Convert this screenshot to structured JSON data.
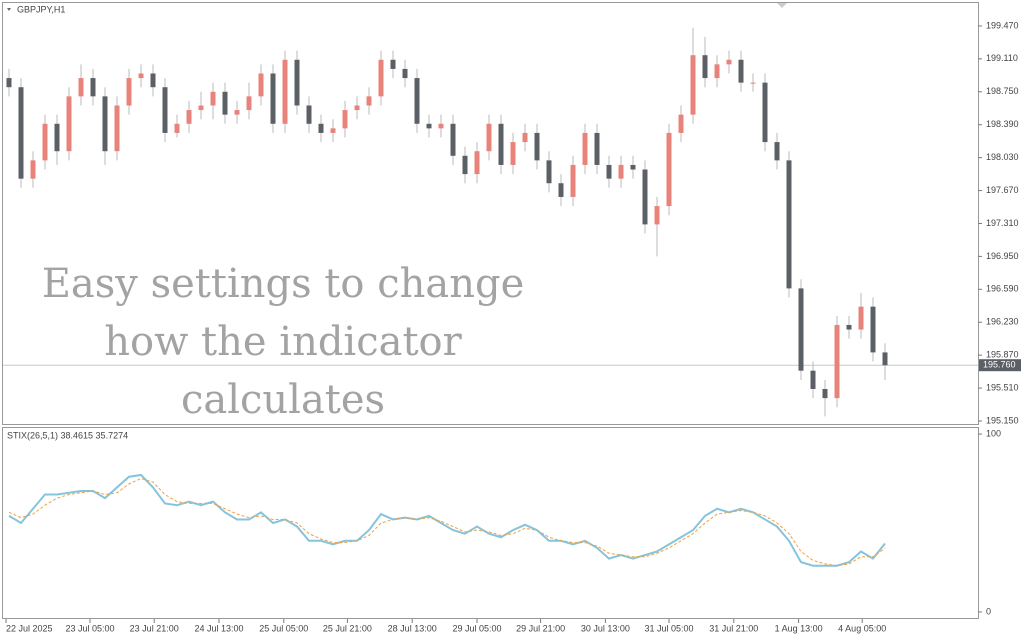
{
  "chart_data": [
    {
      "type": "candlestick",
      "title": "GBPJPY,H1",
      "annotations": [
        "Easy settings to change",
        "how the indicator",
        "calculates"
      ],
      "up_color": "#e8837b",
      "down_color": "#5b5f66",
      "ylim": [
        195.117,
        199.71
      ],
      "xlim": [
        -0.5,
        80.75
      ],
      "yticks": [
        {
          "value": 199.47,
          "label": "199.470"
        },
        {
          "value": 199.11,
          "label": "199.110"
        },
        {
          "value": 198.75,
          "label": "198.750"
        },
        {
          "value": 198.39,
          "label": "198.390"
        },
        {
          "value": 198.03,
          "label": "198.030"
        },
        {
          "value": 197.67,
          "label": "197.670"
        },
        {
          "value": 197.31,
          "label": "197.310"
        },
        {
          "value": 196.95,
          "label": "196.950"
        },
        {
          "value": 196.59,
          "label": "196.590"
        },
        {
          "value": 196.23,
          "label": "196.230"
        },
        {
          "value": 195.87,
          "label": "195.870"
        },
        {
          "value": 195.51,
          "label": "195.510"
        },
        {
          "value": 195.15,
          "label": "195.150"
        }
      ],
      "current_price": {
        "value": 195.76,
        "label": "195.760"
      },
      "open": [
        198.9,
        198.8,
        197.8,
        198.0,
        198.4,
        198.1,
        198.7,
        198.9,
        198.7,
        198.1,
        198.6,
        198.9,
        198.95,
        198.8,
        198.3,
        198.4,
        198.55,
        198.6,
        198.75,
        198.5,
        198.55,
        198.7,
        198.95,
        198.4,
        199.1,
        198.6,
        198.4,
        198.3,
        198.35,
        198.55,
        198.6,
        198.7,
        199.1,
        199.0,
        198.9,
        198.4,
        198.35,
        198.4,
        198.05,
        197.85,
        198.1,
        198.4,
        197.95,
        198.2,
        198.3,
        198.0,
        197.75,
        197.6,
        197.95,
        198.3,
        197.95,
        197.8,
        197.95,
        197.9,
        197.3,
        197.5,
        198.3,
        198.5,
        199.15,
        198.9,
        199.05,
        199.1,
        198.85,
        198.85,
        198.2,
        198.0,
        196.6,
        195.7,
        195.5,
        195.4,
        196.2,
        196.15,
        196.4,
        195.9
      ],
      "high": [
        199.0,
        198.9,
        198.1,
        198.5,
        198.5,
        198.8,
        199.05,
        199.0,
        198.8,
        198.7,
        199.0,
        199.05,
        199.05,
        198.9,
        198.5,
        198.65,
        198.75,
        198.85,
        198.85,
        198.65,
        198.85,
        199.05,
        199.05,
        199.2,
        199.2,
        198.7,
        198.5,
        198.45,
        198.65,
        198.7,
        198.8,
        199.2,
        199.2,
        199.1,
        199.0,
        198.5,
        198.5,
        198.5,
        198.15,
        198.2,
        198.5,
        198.5,
        198.3,
        198.4,
        198.4,
        198.1,
        197.85,
        198.05,
        198.4,
        198.4,
        198.05,
        198.05,
        198.05,
        198.0,
        197.6,
        198.4,
        198.6,
        199.45,
        199.35,
        199.15,
        199.2,
        199.2,
        198.95,
        198.95,
        198.3,
        198.1,
        196.7,
        195.8,
        195.6,
        196.3,
        196.3,
        196.55,
        196.5,
        196.0
      ],
      "low": [
        198.7,
        197.7,
        197.7,
        197.9,
        197.95,
        198.0,
        198.6,
        198.6,
        197.95,
        198.0,
        198.5,
        198.8,
        198.7,
        198.2,
        198.25,
        198.3,
        198.45,
        198.45,
        198.4,
        198.4,
        198.45,
        198.6,
        198.3,
        198.3,
        198.5,
        198.3,
        198.2,
        198.2,
        198.25,
        198.45,
        198.5,
        198.6,
        198.9,
        198.8,
        198.3,
        198.25,
        198.25,
        197.95,
        197.75,
        197.75,
        198.0,
        197.85,
        197.85,
        198.1,
        197.9,
        197.65,
        197.5,
        197.5,
        197.85,
        197.85,
        197.7,
        197.7,
        197.8,
        197.2,
        196.95,
        197.4,
        198.2,
        198.4,
        198.8,
        198.8,
        198.95,
        198.75,
        198.75,
        198.1,
        197.9,
        196.5,
        195.6,
        195.4,
        195.2,
        195.3,
        196.05,
        196.05,
        195.8,
        195.6
      ],
      "close": [
        198.8,
        197.8,
        198.0,
        198.4,
        198.1,
        198.7,
        198.9,
        198.7,
        198.1,
        198.6,
        198.9,
        198.95,
        198.8,
        198.3,
        198.4,
        198.55,
        198.6,
        198.75,
        198.5,
        198.55,
        198.7,
        198.95,
        198.4,
        199.1,
        198.6,
        198.4,
        198.3,
        198.35,
        198.55,
        198.6,
        198.7,
        199.1,
        199.0,
        198.9,
        198.4,
        198.35,
        198.4,
        198.05,
        197.85,
        198.1,
        198.4,
        197.95,
        198.2,
        198.3,
        198.0,
        197.75,
        197.6,
        197.95,
        198.3,
        197.95,
        197.8,
        197.95,
        197.9,
        197.3,
        197.5,
        198.3,
        198.5,
        199.15,
        198.9,
        199.05,
        199.1,
        198.85,
        198.85,
        198.2,
        198.0,
        196.6,
        195.7,
        195.5,
        195.4,
        196.2,
        196.15,
        196.4,
        195.9,
        195.76
      ]
    },
    {
      "type": "line",
      "title": "STIX(26,5,1) 38.4615 35.7274",
      "ylim": [
        -3.4,
        103.4
      ],
      "xlim": [
        -0.5,
        80.75
      ],
      "yticks": [
        100,
        0
      ],
      "xticks": [
        {
          "value": -0.25,
          "label": "22 Jul 2025"
        },
        {
          "value": 6.75,
          "label": "23 Jul 05:00"
        },
        {
          "value": 12.1,
          "label": "23 Jul 21:00"
        },
        {
          "value": 17.5,
          "label": "24 Jul 13:00"
        },
        {
          "value": 22.9,
          "label": "25 Jul 05:00"
        },
        {
          "value": 28.2,
          "label": "25 Jul 21:00"
        },
        {
          "value": 33.6,
          "label": "28 Jul 13:00"
        },
        {
          "value": 39.0,
          "label": "29 Jul 05:00"
        },
        {
          "value": 44.3,
          "label": "29 Jul 21:00"
        },
        {
          "value": 49.7,
          "label": "30 Jul 13:00"
        },
        {
          "value": 55.0,
          "label": "31 Jul 05:00"
        },
        {
          "value": 60.4,
          "label": "31 Jul 21:00"
        },
        {
          "value": 65.8,
          "label": "1 Aug 13:00"
        },
        {
          "value": 71.1,
          "label": "4 Aug 05:00"
        }
      ],
      "series": [
        {
          "color": "#86c4dc",
          "dashed": false,
          "values": [
            54,
            50,
            58,
            66,
            66,
            67,
            68,
            68,
            64,
            70,
            76,
            77,
            70,
            61,
            60,
            62,
            60,
            62,
            56,
            52,
            52,
            56,
            50,
            52,
            48,
            40,
            40,
            38,
            40,
            40,
            46,
            55,
            52,
            53,
            52,
            54,
            50,
            46,
            44,
            48,
            44,
            42,
            46,
            49,
            46,
            40,
            40,
            38,
            40,
            36,
            30,
            32,
            30,
            32,
            34,
            38,
            42,
            46,
            54,
            58,
            56,
            58,
            56,
            52,
            48,
            40,
            28,
            26,
            26,
            26,
            28,
            34,
            30,
            38.4615
          ]
        },
        {
          "color": "#f0a040",
          "dashed": true,
          "values": [
            56,
            53,
            55,
            60,
            64,
            66,
            67,
            68,
            66,
            67,
            72,
            75,
            73,
            66,
            62,
            61,
            61,
            61,
            58,
            55,
            53,
            54,
            52,
            52,
            50,
            44,
            41,
            39,
            39,
            40,
            43,
            50,
            52,
            53,
            52,
            53,
            51,
            48,
            45,
            46,
            45,
            43,
            44,
            47,
            46,
            42,
            40,
            39,
            39,
            37,
            33,
            32,
            31,
            31,
            33,
            36,
            40,
            44,
            50,
            55,
            56,
            57,
            56,
            54,
            50,
            44,
            34,
            29,
            27,
            26,
            27,
            31,
            31,
            35.7274
          ]
        }
      ]
    }
  ]
}
